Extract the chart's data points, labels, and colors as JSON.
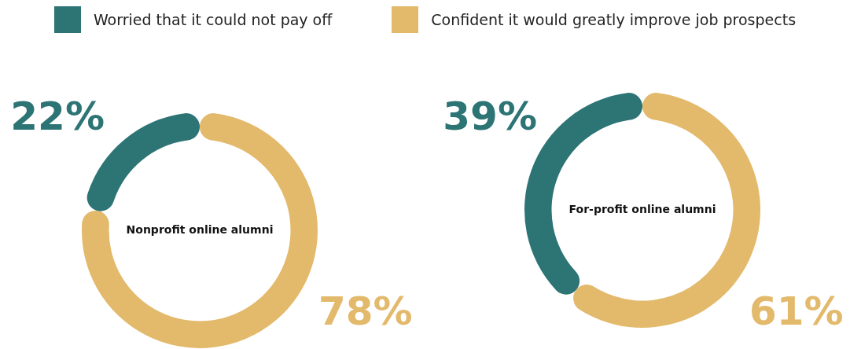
{
  "chart_data": {
    "type": "donut",
    "categories": [
      "Worried that it could not pay off",
      "Confident it would greatly improve job prospects"
    ],
    "colors": [
      "#2d7475",
      "#e3b96b"
    ],
    "legend": "top",
    "series": [
      {
        "name": "Nonprofit online alumni",
        "values": [
          22,
          78
        ],
        "value_labels": [
          "22%",
          "78%"
        ]
      },
      {
        "name": "For-profit online alumni",
        "values": [
          39,
          61
        ],
        "value_labels": [
          "39%",
          "61%"
        ]
      }
    ]
  }
}
